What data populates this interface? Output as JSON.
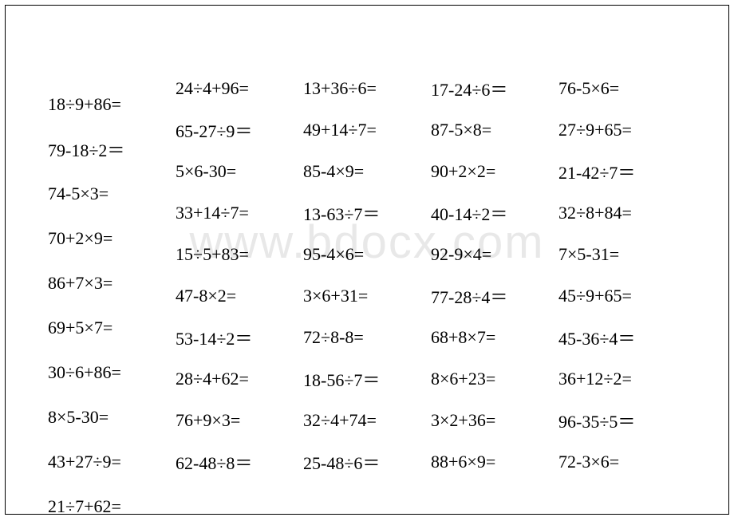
{
  "watermark": "www.bdocx.com",
  "columns": [
    [
      "18÷9+86=",
      "79-18÷2＝",
      "74-5×3=",
      "70+2×9=",
      "86+7×3=",
      "69+5×7=",
      "30÷6+86=",
      "8×5-30=",
      "43+27÷9=",
      "21÷7+62="
    ],
    [
      "24÷4+96=",
      "65-27÷9＝",
      "5×6-30=",
      "33+14÷7=",
      "15÷5+83=",
      "47-8×2=",
      "53-14÷2＝",
      "28÷4+62=",
      "76+9×3=",
      "62-48÷8＝"
    ],
    [
      "13+36÷6=",
      "49+14÷7=",
      "85-4×9=",
      "13-63÷7＝",
      "95-4×6=",
      "3×6+31=",
      "72÷8-8=",
      "18-56÷7＝",
      "32÷4+74=",
      "25-48÷6＝"
    ],
    [
      "17-24÷6＝",
      "87-5×8=",
      "90+2×2=",
      "40-14÷2＝",
      "92-9×4=",
      "77-28÷4＝",
      "68+8×7=",
      "8×6+23=",
      "3×2+36=",
      "88+6×9="
    ],
    [
      "76-5×6=",
      "27÷9+65=",
      "21-42÷7＝",
      "32÷8+84=",
      "7×5-31=",
      "45÷9+65=",
      "45-36÷4＝",
      "36+12÷2=",
      "96-35÷5＝",
      "72-3×6="
    ]
  ]
}
